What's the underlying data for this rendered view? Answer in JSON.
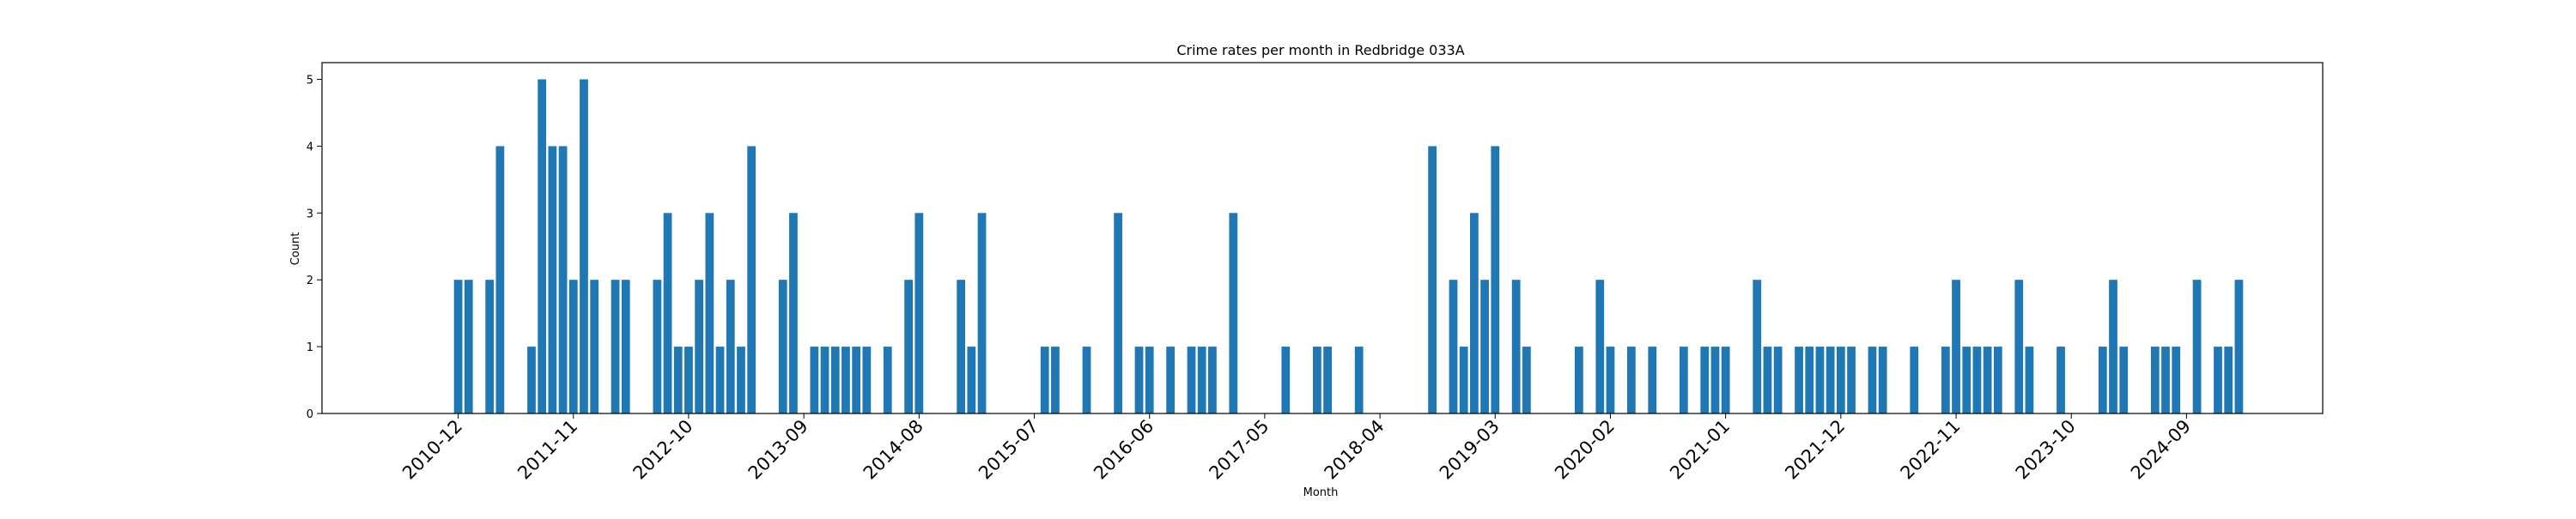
{
  "chart_data": {
    "type": "bar",
    "title": "Crime rates per month in Redbridge 033A",
    "xlabel": "Month",
    "ylabel": "Count",
    "ylim": [
      0,
      5.25
    ],
    "yticks": [
      0,
      1,
      2,
      3,
      4,
      5
    ],
    "xticks": [
      "2010-12",
      "2011-11",
      "2012-10",
      "2013-09",
      "2014-08",
      "2015-07",
      "2016-06",
      "2017-05",
      "2018-04",
      "2019-03",
      "2020-02",
      "2021-01",
      "2021-12",
      "2022-11",
      "2023-10",
      "2024-09"
    ],
    "grid": false,
    "legend": false,
    "color": "#1f77b4",
    "categories": [
      "2010-12",
      "2011-01",
      "2011-03",
      "2011-04",
      "2011-07",
      "2011-08",
      "2011-09",
      "2011-10",
      "2011-11",
      "2011-12",
      "2012-01",
      "2012-03",
      "2012-04",
      "2012-07",
      "2012-08",
      "2012-09",
      "2012-10",
      "2012-11",
      "2012-12",
      "2013-01",
      "2013-02",
      "2013-03",
      "2013-04",
      "2013-07",
      "2013-08",
      "2013-10",
      "2013-11",
      "2013-12",
      "2014-01",
      "2014-02",
      "2014-03",
      "2014-05",
      "2014-07",
      "2014-08",
      "2014-12",
      "2015-01",
      "2015-02",
      "2015-08",
      "2015-09",
      "2015-12",
      "2016-03",
      "2016-05",
      "2016-06",
      "2016-08",
      "2016-10",
      "2016-11",
      "2016-12",
      "2017-02",
      "2017-07",
      "2017-10",
      "2017-11",
      "2018-02",
      "2018-09",
      "2018-11",
      "2018-12",
      "2019-01",
      "2019-02",
      "2019-03",
      "2019-05",
      "2019-06",
      "2019-11",
      "2020-01",
      "2020-02",
      "2020-04",
      "2020-06",
      "2020-09",
      "2020-11",
      "2020-12",
      "2021-01",
      "2021-04",
      "2021-05",
      "2021-06",
      "2021-08",
      "2021-09",
      "2021-10",
      "2021-11",
      "2021-12",
      "2022-01",
      "2022-03",
      "2022-04",
      "2022-07",
      "2022-10",
      "2022-11",
      "2022-12",
      "2023-05",
      "2023-06",
      "2023-09",
      "2023-01",
      "2023-02",
      "2023-03",
      "2024-01",
      "2024-02",
      "2024-03",
      "2024-06",
      "2024-07",
      "2024-08",
      "2024-10",
      "2024-12",
      "2025-01",
      "2025-02"
    ],
    "values": [
      2,
      2,
      2,
      4,
      1,
      5,
      4,
      4,
      2,
      5,
      2,
      2,
      2,
      2,
      3,
      1,
      1,
      2,
      3,
      1,
      2,
      1,
      4,
      2,
      3,
      1,
      1,
      1,
      1,
      1,
      1,
      1,
      2,
      3,
      2,
      1,
      3,
      1,
      1,
      1,
      3,
      1,
      1,
      1,
      1,
      1,
      1,
      3,
      1,
      1,
      1,
      1,
      4,
      2,
      1,
      3,
      2,
      4,
      2,
      1,
      1,
      2,
      1,
      1,
      1,
      1,
      1,
      1,
      1,
      2,
      1,
      1,
      1,
      1,
      1,
      1,
      1,
      1,
      1,
      1,
      1,
      1,
      2,
      1,
      2,
      1,
      1,
      1,
      1,
      1,
      1,
      2,
      1,
      1,
      1,
      1,
      2,
      1,
      1,
      2
    ]
  }
}
